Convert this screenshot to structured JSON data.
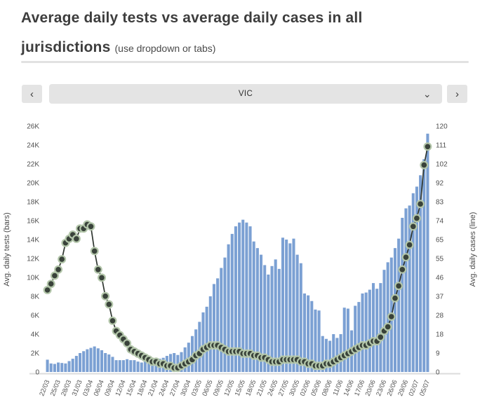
{
  "header": {
    "title_line1": "Average daily tests vs average daily cases in all",
    "title_line2": "jurisdictions",
    "subtitle": "(use dropdown or tabs)"
  },
  "toolbar": {
    "prev_label": "‹",
    "next_label": "›",
    "dropdown_value": "VIC",
    "dropdown_chevron": "⌄"
  },
  "colors": {
    "bar": "#7BA0D3",
    "line": "#2E352F",
    "marker_fill": "#39423A",
    "marker_ring": "#B3C6AA",
    "axis_line": "#dcdcdc"
  },
  "chart_data": {
    "type": "bar",
    "subtype": "bar-plus-line-dual-axis",
    "title": "Average daily tests vs average daily cases in all jurisdictions",
    "grid": false,
    "x_tick_every": 3,
    "categories": [
      "22/03",
      "23/03",
      "24/03",
      "25/03",
      "26/03",
      "27/03",
      "28/03",
      "29/03",
      "30/03",
      "31/03",
      "01/04",
      "02/04",
      "03/04",
      "04/04",
      "05/04",
      "06/04",
      "07/04",
      "08/04",
      "09/04",
      "10/04",
      "11/04",
      "12/04",
      "13/04",
      "14/04",
      "15/04",
      "16/04",
      "17/04",
      "18/04",
      "19/04",
      "20/04",
      "21/04",
      "22/04",
      "23/04",
      "24/04",
      "25/04",
      "26/04",
      "27/04",
      "28/04",
      "29/04",
      "30/04",
      "01/05",
      "02/05",
      "03/05",
      "04/05",
      "05/05",
      "06/05",
      "07/05",
      "08/05",
      "09/05",
      "10/05",
      "11/05",
      "12/05",
      "13/05",
      "14/05",
      "15/05",
      "16/05",
      "17/05",
      "18/05",
      "19/05",
      "20/05",
      "21/05",
      "22/05",
      "23/05",
      "24/05",
      "25/05",
      "26/05",
      "27/05",
      "28/05",
      "29/05",
      "30/05",
      "31/05",
      "01/06",
      "02/06",
      "03/06",
      "04/06",
      "05/06",
      "06/06",
      "07/06",
      "08/06",
      "09/06",
      "10/06",
      "11/06",
      "12/06",
      "13/06",
      "14/06",
      "15/06",
      "16/06",
      "17/06",
      "18/06",
      "19/06",
      "20/06",
      "21/06",
      "22/06",
      "23/06",
      "24/06",
      "25/06",
      "26/06",
      "27/06",
      "28/06",
      "29/06",
      "30/06",
      "01/07",
      "02/07",
      "03/07",
      "04/07",
      "05/07"
    ],
    "series": [
      {
        "name": "Avg. daily tests (bars)",
        "type": "bar",
        "axis": "left",
        "values": [
          1300,
          900,
          850,
          1000,
          950,
          900,
          1150,
          1400,
          1700,
          2000,
          2200,
          2400,
          2550,
          2700,
          2500,
          2300,
          2000,
          1850,
          1600,
          1250,
          1250,
          1250,
          1350,
          1250,
          1250,
          1100,
          1000,
          1100,
          1250,
          1100,
          1250,
          1400,
          1500,
          1700,
          1900,
          2000,
          1800,
          2100,
          2600,
          3100,
          3800,
          4500,
          5300,
          6300,
          6900,
          8000,
          9300,
          9900,
          11000,
          12100,
          13500,
          14600,
          15400,
          15800,
          16100,
          15800,
          15400,
          13800,
          13100,
          12400,
          11300,
          10300,
          11200,
          11900,
          10900,
          14200,
          14000,
          13600,
          14100,
          12400,
          11500,
          8300,
          8100,
          7500,
          6600,
          6500,
          3800,
          3500,
          3300,
          4000,
          3600,
          4000,
          6800,
          6700,
          4400,
          7000,
          7400,
          8300,
          8400,
          8700,
          9400,
          8800,
          9400,
          10800,
          11600,
          12100,
          13100,
          14100,
          16300,
          17300,
          17600,
          18900,
          19600,
          20800,
          22500,
          25200
        ]
      },
      {
        "name": "Avg. daily cases (line)",
        "type": "line",
        "axis": "right",
        "values": [
          40,
          43,
          47,
          50,
          55,
          63,
          65,
          67,
          65,
          70,
          70,
          72,
          71,
          59,
          50,
          46,
          37,
          33,
          25,
          20,
          18,
          16,
          14,
          11,
          10,
          9,
          8,
          7,
          6,
          5,
          5,
          4,
          4,
          3,
          3,
          2,
          2,
          3,
          4,
          5,
          6,
          8,
          9,
          11,
          12,
          13,
          13,
          13,
          12,
          11,
          10,
          10,
          10,
          10,
          9,
          9,
          9,
          8,
          8,
          7,
          7,
          6,
          5,
          5,
          5,
          6,
          6,
          6,
          6,
          6,
          5,
          5,
          4,
          4,
          3,
          3,
          3,
          4,
          4,
          5,
          6,
          7,
          8,
          9,
          10,
          11,
          12,
          13,
          13,
          14,
          15,
          15,
          17,
          20,
          22,
          27,
          36,
          42,
          50,
          56,
          62,
          71,
          75,
          82,
          101,
          110
        ]
      }
    ],
    "left_axis": {
      "title": "Avg. daily tests (bars)",
      "max": 26000,
      "min": 0,
      "ticks": [
        "0",
        "2K",
        "4K",
        "6K",
        "8K",
        "10K",
        "12K",
        "14K",
        "16K",
        "18K",
        "20K",
        "22K",
        "24K",
        "26K"
      ]
    },
    "right_axis": {
      "title": "Avg. daily cases (line)",
      "max": 120,
      "min": 0,
      "ticks": [
        "0",
        "9",
        "18",
        "28",
        "37",
        "46",
        "55",
        "65",
        "74",
        "83",
        "92",
        "102",
        "111",
        "120"
      ]
    }
  }
}
